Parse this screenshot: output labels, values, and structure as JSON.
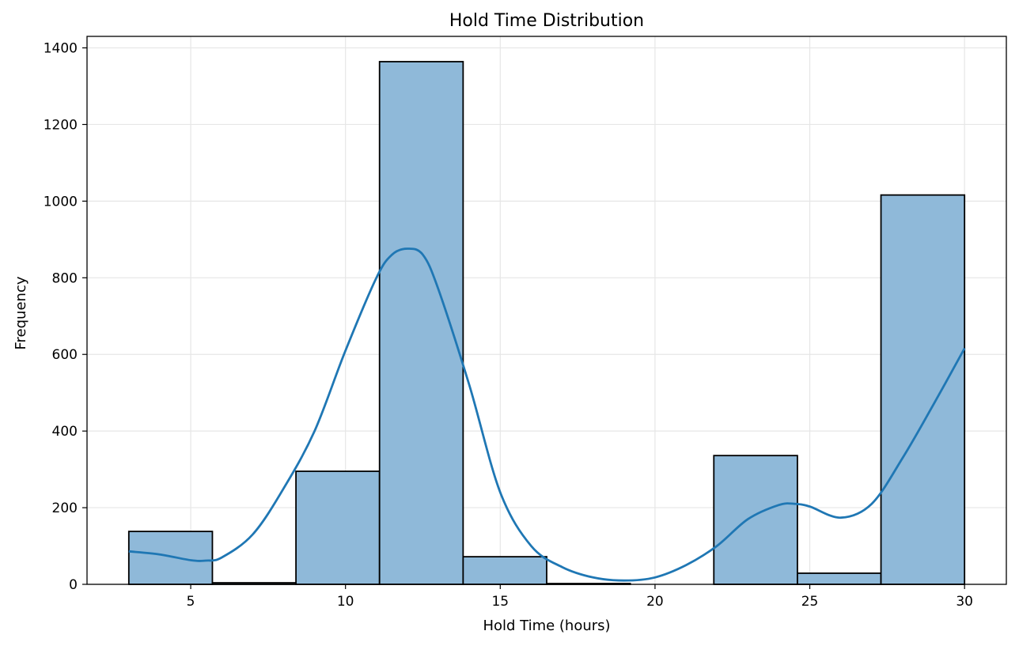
{
  "chart_data": {
    "type": "bar",
    "title": "Hold Time Distribution",
    "xlabel": "Hold Time (hours)",
    "ylabel": "Frequency",
    "xlim": [
      1.65,
      31.35
    ],
    "ylim": [
      0,
      1430
    ],
    "xticks": [
      5,
      10,
      15,
      20,
      25,
      30
    ],
    "yticks": [
      0,
      200,
      400,
      600,
      800,
      1000,
      1200,
      1400
    ],
    "grid": true,
    "bins": [
      {
        "start": 3.0,
        "end": 5.7,
        "count": 138
      },
      {
        "start": 5.7,
        "end": 8.4,
        "count": 4
      },
      {
        "start": 8.4,
        "end": 11.1,
        "count": 295
      },
      {
        "start": 11.1,
        "end": 13.8,
        "count": 1364
      },
      {
        "start": 13.8,
        "end": 16.5,
        "count": 72
      },
      {
        "start": 16.5,
        "end": 19.2,
        "count": 2
      },
      {
        "start": 19.2,
        "end": 21.9,
        "count": 0
      },
      {
        "start": 21.9,
        "end": 24.6,
        "count": 336
      },
      {
        "start": 24.6,
        "end": 27.3,
        "count": 29
      },
      {
        "start": 27.3,
        "end": 30.0,
        "count": 1016
      }
    ],
    "kde_curve": {
      "x": [
        3,
        4,
        5,
        5.5,
        6,
        7,
        8,
        9,
        10,
        11,
        11.5,
        12,
        12.5,
        13,
        14,
        15,
        16,
        17,
        18,
        19,
        20,
        21,
        22,
        23,
        24,
        24.5,
        25,
        26,
        27,
        28,
        29,
        30
      ],
      "y": [
        86,
        78,
        63,
        62,
        70,
        130,
        250,
        400,
        610,
        800,
        860,
        876,
        860,
        770,
        520,
        240,
        100,
        45,
        18,
        10,
        18,
        50,
        100,
        170,
        207,
        210,
        203,
        174,
        210,
        330,
        470,
        616
      ]
    },
    "colors": {
      "bar_fill": "#8fb9d9",
      "bar_edge": "#000000",
      "kde_line": "#1f77b4"
    }
  }
}
